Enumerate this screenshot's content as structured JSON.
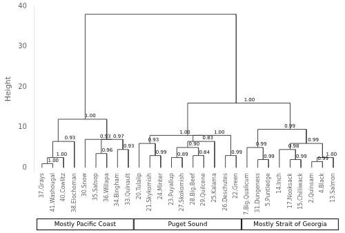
{
  "chart_data": {
    "type": "dendrogram",
    "categories": [
      "37.Grays",
      "41.Washougal",
      "40.Cowlitz",
      "38.Elochoman",
      "30.Snow",
      "35.Satsop",
      "36.Willapa",
      "34.Bingham",
      "33.Quinault",
      "20.Tulalip",
      "21.Skykomish",
      "24.Minter",
      "23.Puyallup",
      "27.Skokomish",
      "28.Big.Beef",
      "29.Quilcene",
      "25.Kalama",
      "26.Deschutes",
      "22.Green",
      "7.Big.Qualicum",
      "31.Dungeness",
      "5.Puntledge",
      "14.Inch",
      "17.Nooksack",
      "15.Chilliwack",
      "2.Quinsam",
      "4.Black",
      "13.Salmon"
    ],
    "ylabel": "Height",
    "ylim": [
      -1,
      40
    ],
    "yticks": [
      0,
      10,
      20,
      30,
      40
    ],
    "grid": false,
    "color": "#444444",
    "merges": [
      {
        "left": [
          "37.Grays"
        ],
        "right": [
          "41.Washougal"
        ],
        "height": 1.0,
        "label": "1.00"
      },
      {
        "left": [
          "37.Grays",
          "41.Washougal"
        ],
        "right": [
          "40.Cowlitz"
        ],
        "height": 2.5,
        "label": "1.00"
      },
      {
        "left": [
          "37.Grays",
          "41.Washougal",
          "40.Cowlitz"
        ],
        "right": [
          "38.Elochoman"
        ],
        "height": 6.5,
        "label": "0.93"
      },
      {
        "left": [
          "35.Satsop"
        ],
        "right": [
          "36.Willapa"
        ],
        "height": 3.5,
        "label": "0.96"
      },
      {
        "left": [
          "34.Bingham"
        ],
        "right": [
          "33.Quinault"
        ],
        "height": 4.5,
        "label": "0.93"
      },
      {
        "left": [
          "35.Satsop",
          "36.Willapa"
        ],
        "right": [
          "34.Bingham",
          "33.Quinault"
        ],
        "height": 7.0,
        "label": "0.97"
      },
      {
        "left": [
          "30.Snow"
        ],
        "right": [
          "35.Satsop",
          "36.Willapa",
          "34.Bingham",
          "33.Quinault"
        ],
        "height": 7.0,
        "label": "0.93"
      },
      {
        "left": [
          "37.Grays",
          "41.Washougal",
          "40.Cowlitz",
          "38.Elochoman"
        ],
        "right": [
          "30.Snow",
          "35.Satsop",
          "36.Willapa",
          "34.Bingham",
          "33.Quinault"
        ],
        "height": 12.0,
        "label": "1.00"
      },
      {
        "left": [
          "21.Skykomish"
        ],
        "right": [
          "24.Minter"
        ],
        "height": 3.0,
        "label": "0.99"
      },
      {
        "left": [
          "20.Tulalip"
        ],
        "right": [
          "21.Skykomish",
          "24.Minter"
        ],
        "height": 6.0,
        "label": "0.93"
      },
      {
        "left": [
          "23.Puyallup"
        ],
        "right": [
          "27.Skokomish"
        ],
        "height": 2.5,
        "label": "0.89"
      },
      {
        "left": [
          "28.Big.Beef"
        ],
        "right": [
          "29.Quilcene"
        ],
        "height": 3.0,
        "label": "0.84"
      },
      {
        "left": [
          "23.Puyallup",
          "27.Skokomish"
        ],
        "right": [
          "28.Big.Beef",
          "29.Quilcene"
        ],
        "height": 5.0,
        "label": "0.90"
      },
      {
        "left": [
          "23.Puyallup",
          "27.Skokomish",
          "28.Big.Beef",
          "29.Quilcene"
        ],
        "right": [
          "25.Kalama"
        ],
        "height": 6.5,
        "label": "0.83"
      },
      {
        "left": [
          "26.Deschutes"
        ],
        "right": [
          "22.Green"
        ],
        "height": 3.0,
        "label": "0.99"
      },
      {
        "left": [
          "23.Puyallup",
          "27.Skokomish",
          "28.Big.Beef",
          "29.Quilcene",
          "25.Kalama"
        ],
        "right": [
          "26.Deschutes",
          "22.Green"
        ],
        "height": 8.0,
        "label": "1.00"
      },
      {
        "left": [
          "20.Tulalip",
          "21.Skykomish",
          "24.Minter"
        ],
        "right": [
          "23.Puyallup",
          "27.Skokomish",
          "28.Big.Beef",
          "29.Quilcene",
          "25.Kalama",
          "26.Deschutes",
          "22.Green"
        ],
        "height": 8.0,
        "label": "1.00"
      },
      {
        "left": [
          "31.Dungeness"
        ],
        "right": [
          "5.Puntledge"
        ],
        "height": 2.0,
        "label": "0.99"
      },
      {
        "left": [
          "7.Big.Qualicum"
        ],
        "right": [
          "31.Dungeness",
          "5.Puntledge"
        ],
        "height": 5.0,
        "label": "0.99"
      },
      {
        "left": [
          "17.Nooksack"
        ],
        "right": [
          "15.Chilliwack"
        ],
        "height": 2.0,
        "label": "0.99"
      },
      {
        "left": [
          "14.Inch"
        ],
        "right": [
          "17.Nooksack",
          "15.Chilliwack"
        ],
        "height": 4.5,
        "label": "0.98"
      },
      {
        "left": [
          "2.Quinsam"
        ],
        "right": [
          "4.Black"
        ],
        "height": 1.5,
        "label": "0.99"
      },
      {
        "left": [
          "2.Quinsam",
          "4.Black"
        ],
        "right": [
          "13.Salmon"
        ],
        "height": 2.5,
        "label": "1.00"
      },
      {
        "left": [
          "14.Inch",
          "17.Nooksack",
          "15.Chilliwack"
        ],
        "right": [
          "2.Quinsam",
          "4.Black",
          "13.Salmon"
        ],
        "height": 6.0,
        "label": "0.99"
      },
      {
        "left": [
          "7.Big.Qualicum",
          "31.Dungeness",
          "5.Puntledge"
        ],
        "right": [
          "14.Inch",
          "17.Nooksack",
          "15.Chilliwack",
          "2.Quinsam",
          "4.Black",
          "13.Salmon"
        ],
        "height": 9.5,
        "label": "0.99"
      },
      {
        "left": [
          "20.Tulalip",
          "21.Skykomish",
          "24.Minter",
          "23.Puyallup",
          "27.Skokomish",
          "28.Big.Beef",
          "29.Quilcene",
          "25.Kalama",
          "26.Deschutes",
          "22.Green"
        ],
        "right": [
          "7.Big.Qualicum",
          "31.Dungeness",
          "5.Puntledge",
          "14.Inch",
          "17.Nooksack",
          "15.Chilliwack",
          "2.Quinsam",
          "4.Black",
          "13.Salmon"
        ],
        "height": 16.0,
        "label": "1.00"
      },
      {
        "left": [
          "37.Grays",
          "41.Washougal",
          "40.Cowlitz",
          "38.Elochoman",
          "30.Snow",
          "35.Satsop",
          "36.Willapa",
          "34.Bingham",
          "33.Quinault"
        ],
        "right": [
          "20.Tulalip",
          "21.Skykomish",
          "24.Minter",
          "23.Puyallup",
          "27.Skokomish",
          "28.Big.Beef",
          "29.Quilcene",
          "25.Kalama",
          "26.Deschutes",
          "22.Green",
          "7.Big.Qualicum",
          "31.Dungeness",
          "5.Puntledge",
          "14.Inch",
          "17.Nooksack",
          "15.Chilliwack",
          "2.Quinsam",
          "4.Black",
          "13.Salmon"
        ],
        "height": 38.0
      }
    ],
    "groups": [
      {
        "name": "Mostly Pacific Coast",
        "from": "37.Grays",
        "to": "33.Quinault"
      },
      {
        "name": "Puget Sound",
        "from": "20.Tulalip",
        "to": "22.Green"
      },
      {
        "name": "Mostly Strait of Georgia",
        "from": "7.Big.Qualicum",
        "to": "13.Salmon"
      }
    ]
  }
}
